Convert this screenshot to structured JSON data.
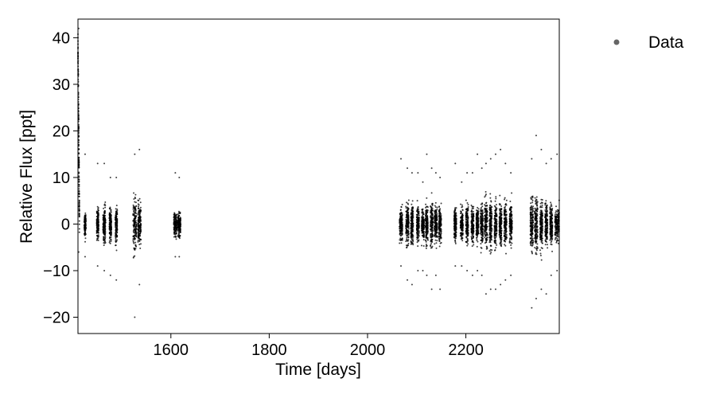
{
  "chart_data": {
    "type": "scatter",
    "title": "",
    "xlabel": "Time [days]",
    "ylabel": "Relative Flux [ppt]",
    "xlim": [
      1411,
      2390
    ],
    "ylim": [
      -23.5,
      44
    ],
    "xticks": [
      1600,
      1800,
      2000,
      2200
    ],
    "xtick_labels": [
      "1600",
      "1800",
      "2000",
      "2200"
    ],
    "yticks": [
      -20,
      -10,
      0,
      10,
      20,
      30,
      40
    ],
    "ytick_labels": [
      "−20",
      "−10",
      "0",
      "10",
      "20",
      "30",
      "40"
    ],
    "grid": false,
    "legend_position": "top-right, outside plot",
    "series": [
      {
        "name": "Data",
        "color": "#000000",
        "marker": "dot",
        "segments": [
          {
            "x_range": [
              1411,
              1414
            ],
            "y_range": [
              -6,
              42
            ]
          },
          {
            "x_range": [
              1424,
              1427
            ],
            "y_range": [
              -7,
              15
            ]
          },
          {
            "x_range": [
              1449,
              1453
            ],
            "y_range": [
              -9,
              13
            ]
          },
          {
            "x_range": [
              1462,
              1467
            ],
            "y_range": [
              -10,
              13
            ]
          },
          {
            "x_range": [
              1475,
              1479
            ],
            "y_range": [
              -11,
              10
            ]
          },
          {
            "x_range": [
              1487,
              1491
            ],
            "y_range": [
              -12,
              10
            ]
          },
          {
            "x_range": [
              1523,
              1530
            ],
            "y_range": [
              -20,
              15
            ]
          },
          {
            "x_range": [
              1533,
              1539
            ],
            "y_range": [
              -13,
              16
            ]
          },
          {
            "x_range": [
              1606,
              1612
            ],
            "y_range": [
              -7,
              11
            ]
          },
          {
            "x_range": [
              1614,
              1620
            ],
            "y_range": [
              -7,
              10
            ]
          },
          {
            "x_range": [
              2065,
              2071
            ],
            "y_range": [
              -9,
              14
            ]
          },
          {
            "x_range": [
              2078,
              2084
            ],
            "y_range": [
              -12,
              12
            ]
          },
          {
            "x_range": [
              2088,
              2093
            ],
            "y_range": [
              -13,
              11
            ]
          },
          {
            "x_range": [
              2100,
              2105
            ],
            "y_range": [
              -10,
              11
            ]
          },
          {
            "x_range": [
              2110,
              2115
            ],
            "y_range": [
              -10,
              9
            ]
          },
          {
            "x_range": [
              2118,
              2123
            ],
            "y_range": [
              -11,
              15
            ]
          },
          {
            "x_range": [
              2128,
              2133
            ],
            "y_range": [
              -14,
              12
            ]
          },
          {
            "x_range": [
              2136,
              2142
            ],
            "y_range": [
              -11,
              11
            ]
          },
          {
            "x_range": [
              2145,
              2150
            ],
            "y_range": [
              -14,
              10
            ]
          },
          {
            "x_range": [
              2176,
              2181
            ],
            "y_range": [
              -9,
              13
            ]
          },
          {
            "x_range": [
              2189,
              2194
            ],
            "y_range": [
              -9,
              9
            ]
          },
          {
            "x_range": [
              2200,
              2205
            ],
            "y_range": [
              -10,
              11
            ]
          },
          {
            "x_range": [
              2211,
              2216
            ],
            "y_range": [
              -11,
              11
            ]
          },
          {
            "x_range": [
              2221,
              2226
            ],
            "y_range": [
              -10,
              15
            ]
          },
          {
            "x_range": [
              2230,
              2235
            ],
            "y_range": [
              -11,
              12
            ]
          },
          {
            "x_range": [
              2238,
              2244
            ],
            "y_range": [
              -15,
              13
            ]
          },
          {
            "x_range": [
              2248,
              2253
            ],
            "y_range": [
              -14,
              14
            ]
          },
          {
            "x_range": [
              2258,
              2263
            ],
            "y_range": [
              -14,
              15
            ]
          },
          {
            "x_range": [
              2268,
              2273
            ],
            "y_range": [
              -13,
              16
            ]
          },
          {
            "x_range": [
              2278,
              2283
            ],
            "y_range": [
              -12,
              13
            ]
          },
          {
            "x_range": [
              2289,
              2294
            ],
            "y_range": [
              -11,
              11
            ]
          },
          {
            "x_range": [
              2331,
              2337
            ],
            "y_range": [
              -18,
              14
            ]
          },
          {
            "x_range": [
              2340,
              2346
            ],
            "y_range": [
              -16,
              19
            ]
          },
          {
            "x_range": [
              2351,
              2356
            ],
            "y_range": [
              -14,
              16
            ]
          },
          {
            "x_range": [
              2361,
              2366
            ],
            "y_range": [
              -15,
              13
            ]
          },
          {
            "x_range": [
              2371,
              2376
            ],
            "y_range": [
              -11,
              14
            ]
          },
          {
            "x_range": [
              2381,
              2390
            ],
            "y_range": [
              -10,
              15
            ]
          }
        ]
      }
    ]
  }
}
